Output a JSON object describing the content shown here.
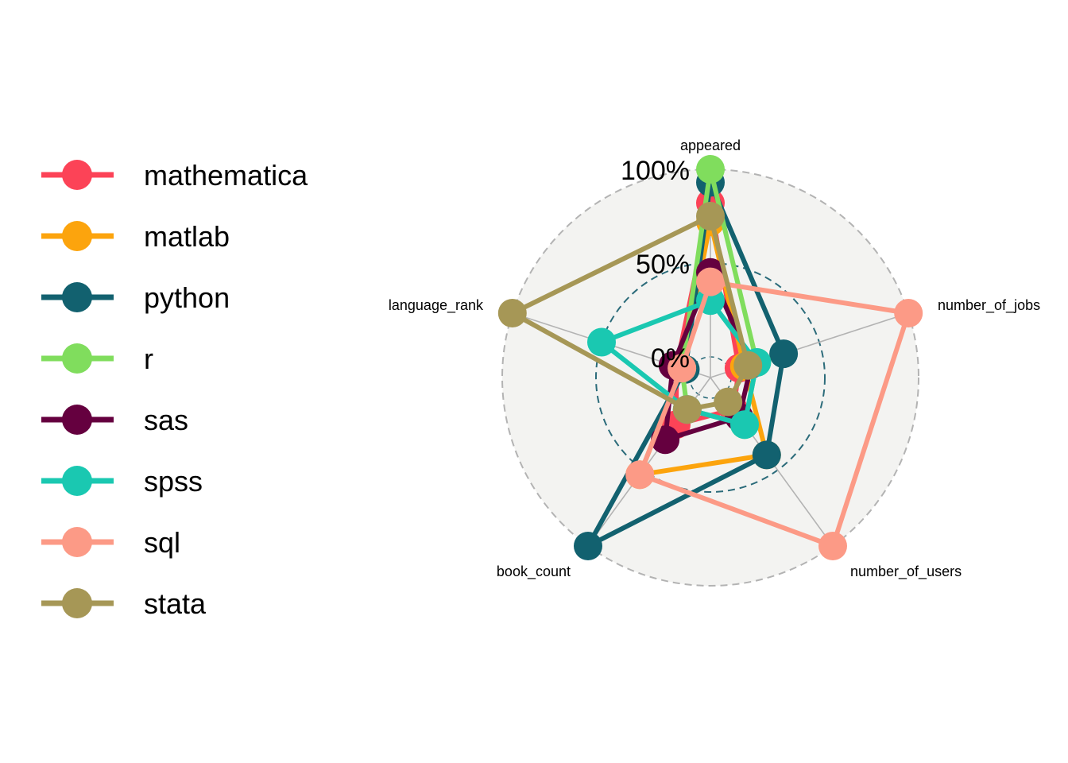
{
  "chart_data": {
    "type": "radar",
    "title": "",
    "axes": [
      "appeared",
      "number_of_jobs",
      "number_of_users",
      "book_count",
      "language_rank"
    ],
    "grid_labels": [
      "0%",
      "50%",
      "100%"
    ],
    "range": [
      0,
      100
    ],
    "grid_lines": "dashed",
    "legend_position": "left",
    "colors": {
      "background_circle": "#f3f3f1",
      "outer_grid": "#b3b3b3",
      "mid_grid": "#2b6b7a",
      "spokes": "#b3b3b3"
    },
    "series": [
      {
        "name": "mathematica",
        "color": "#fc4357",
        "values": [
          82,
          5,
          10,
          20,
          8
        ]
      },
      {
        "name": "matlab",
        "color": "#fca40d",
        "values": [
          72,
          8,
          40,
          53,
          5
        ]
      },
      {
        "name": "python",
        "color": "#12616f",
        "values": [
          93,
          30,
          40,
          100,
          3
        ]
      },
      {
        "name": "r",
        "color": "#80dd5d",
        "values": [
          100,
          15,
          20,
          10,
          5
        ]
      },
      {
        "name": "sas",
        "color": "#65003f",
        "values": [
          45,
          12,
          15,
          30,
          10
        ]
      },
      {
        "name": "spss",
        "color": "#1ac8b1",
        "values": [
          30,
          15,
          20,
          10,
          50
        ]
      },
      {
        "name": "sql",
        "color": "#fc9a86",
        "values": [
          40,
          100,
          100,
          53,
          5
        ]
      },
      {
        "name": "stata",
        "color": "#a69756",
        "values": [
          75,
          10,
          5,
          10,
          100
        ]
      }
    ]
  }
}
